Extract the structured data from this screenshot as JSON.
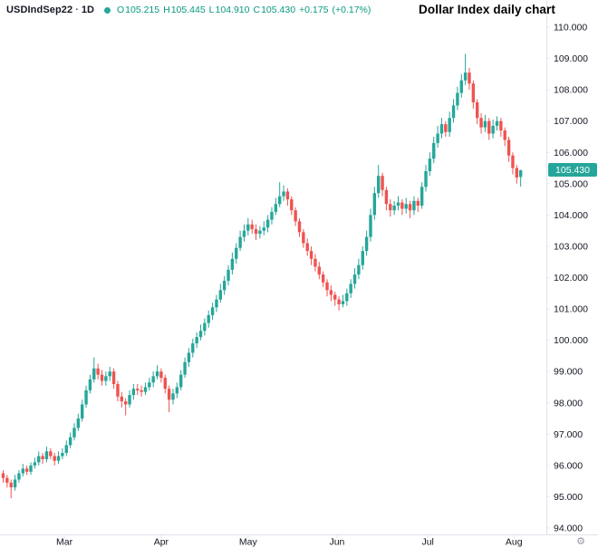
{
  "header": {
    "symbol": "USDIndSep22",
    "separator": "·",
    "interval": "1D",
    "ohlc": {
      "o_label": "O",
      "o": "105.215",
      "h_label": "H",
      "h": "105.445",
      "l_label": "L",
      "l": "104.910",
      "c_label": "C",
      "c": "105.430",
      "change": "+0.175",
      "change_pct": "(+0.17%)"
    }
  },
  "title": "Dollar Index daily chart",
  "colors": {
    "up": "#26a69a",
    "down": "#ef5350",
    "ohlc_text": "#089981",
    "axis_line": "#e0e3eb",
    "axis_text": "#131722",
    "label_bg": "#26a69a",
    "label_text": "#ffffff"
  },
  "footer": {
    "gear_icon": "⚙"
  },
  "chart_data": {
    "type": "candlestick",
    "title": "Dollar Index daily chart",
    "symbol": "USDIndSep22",
    "interval": "1D",
    "legend_position": "top-left",
    "grid": false,
    "y_axis": {
      "min": 94,
      "max": 110,
      "step": 1,
      "decimals": 3,
      "side": "right"
    },
    "x_axis": {
      "months": [
        {
          "label": "Mar",
          "i": 15.5
        },
        {
          "label": "Apr",
          "i": 40
        },
        {
          "label": "May",
          "i": 62
        },
        {
          "label": "Jun",
          "i": 84.5
        },
        {
          "label": "Jul",
          "i": 107.5
        },
        {
          "label": "Aug",
          "i": 129.3
        }
      ]
    },
    "last_price": 105.43,
    "last_price_label": "105.430",
    "candles": [
      [
        95.75,
        95.85,
        95.45,
        95.6
      ],
      [
        95.6,
        95.7,
        95.3,
        95.45
      ],
      [
        95.45,
        95.55,
        94.95,
        95.3
      ],
      [
        95.3,
        95.7,
        95.2,
        95.55
      ],
      [
        95.55,
        95.85,
        95.45,
        95.75
      ],
      [
        95.75,
        96.05,
        95.65,
        95.9
      ],
      [
        95.9,
        96.0,
        95.7,
        95.8
      ],
      [
        95.8,
        96.1,
        95.7,
        96.0
      ],
      [
        96.0,
        96.25,
        95.9,
        96.1
      ],
      [
        96.1,
        96.45,
        96.0,
        96.3
      ],
      [
        96.3,
        96.4,
        96.05,
        96.2
      ],
      [
        96.2,
        96.6,
        96.1,
        96.45
      ],
      [
        96.45,
        96.55,
        96.2,
        96.3
      ],
      [
        96.3,
        96.4,
        96.0,
        96.15
      ],
      [
        96.15,
        96.45,
        96.05,
        96.3
      ],
      [
        96.3,
        96.55,
        96.2,
        96.4
      ],
      [
        96.4,
        96.8,
        96.3,
        96.65
      ],
      [
        96.65,
        97.05,
        96.55,
        96.9
      ],
      [
        96.9,
        97.35,
        96.8,
        97.2
      ],
      [
        97.2,
        97.65,
        97.1,
        97.5
      ],
      [
        97.5,
        98.1,
        97.4,
        97.95
      ],
      [
        97.95,
        98.55,
        97.85,
        98.4
      ],
      [
        98.4,
        98.9,
        98.3,
        98.75
      ],
      [
        98.75,
        99.45,
        98.65,
        99.1
      ],
      [
        99.1,
        99.25,
        98.75,
        98.9
      ],
      [
        98.9,
        99.05,
        98.55,
        98.7
      ],
      [
        98.7,
        99.0,
        98.55,
        98.85
      ],
      [
        98.85,
        99.15,
        98.7,
        99.0
      ],
      [
        99.0,
        99.1,
        98.45,
        98.6
      ],
      [
        98.6,
        98.7,
        98.05,
        98.2
      ],
      [
        98.2,
        98.35,
        97.85,
        98.05
      ],
      [
        98.05,
        98.15,
        97.6,
        97.95
      ],
      [
        97.95,
        98.4,
        97.85,
        98.25
      ],
      [
        98.25,
        98.6,
        98.1,
        98.45
      ],
      [
        98.45,
        98.6,
        98.25,
        98.4
      ],
      [
        98.4,
        98.55,
        98.2,
        98.35
      ],
      [
        98.35,
        98.65,
        98.25,
        98.5
      ],
      [
        98.5,
        98.8,
        98.4,
        98.65
      ],
      [
        98.65,
        99.0,
        98.5,
        98.85
      ],
      [
        98.85,
        99.2,
        98.75,
        99.0
      ],
      [
        99.0,
        99.1,
        98.65,
        98.8
      ],
      [
        98.8,
        98.9,
        98.3,
        98.45
      ],
      [
        98.45,
        98.55,
        97.7,
        98.1
      ],
      [
        98.1,
        98.45,
        97.95,
        98.3
      ],
      [
        98.3,
        98.65,
        98.15,
        98.5
      ],
      [
        98.5,
        99.05,
        98.4,
        98.9
      ],
      [
        98.9,
        99.45,
        98.8,
        99.3
      ],
      [
        99.3,
        99.75,
        99.15,
        99.6
      ],
      [
        99.6,
        100.05,
        99.45,
        99.9
      ],
      [
        99.9,
        100.25,
        99.75,
        100.1
      ],
      [
        100.1,
        100.5,
        100.0,
        100.3
      ],
      [
        100.3,
        100.7,
        100.15,
        100.55
      ],
      [
        100.55,
        100.95,
        100.4,
        100.8
      ],
      [
        100.8,
        101.2,
        100.65,
        101.05
      ],
      [
        101.05,
        101.45,
        100.9,
        101.3
      ],
      [
        101.3,
        101.8,
        101.2,
        101.6
      ],
      [
        101.6,
        102.05,
        101.45,
        101.9
      ],
      [
        101.9,
        102.4,
        101.75,
        102.25
      ],
      [
        102.25,
        102.8,
        102.1,
        102.6
      ],
      [
        102.6,
        103.1,
        102.45,
        102.95
      ],
      [
        102.95,
        103.5,
        102.85,
        103.3
      ],
      [
        103.3,
        103.7,
        103.15,
        103.5
      ],
      [
        103.5,
        103.9,
        103.35,
        103.7
      ],
      [
        103.7,
        103.85,
        103.4,
        103.55
      ],
      [
        103.55,
        103.7,
        103.2,
        103.4
      ],
      [
        103.4,
        103.65,
        103.25,
        103.5
      ],
      [
        103.5,
        103.8,
        103.35,
        103.6
      ],
      [
        103.6,
        104.0,
        103.45,
        103.85
      ],
      [
        103.85,
        104.25,
        103.7,
        104.1
      ],
      [
        104.1,
        104.55,
        104.0,
        104.35
      ],
      [
        104.35,
        105.05,
        104.25,
        104.6
      ],
      [
        104.6,
        104.95,
        104.45,
        104.75
      ],
      [
        104.75,
        104.85,
        104.3,
        104.5
      ],
      [
        104.5,
        104.6,
        104.0,
        104.15
      ],
      [
        104.15,
        104.25,
        103.65,
        103.8
      ],
      [
        103.8,
        103.9,
        103.3,
        103.45
      ],
      [
        103.45,
        103.55,
        102.95,
        103.1
      ],
      [
        103.1,
        103.25,
        102.7,
        102.85
      ],
      [
        102.85,
        103.0,
        102.4,
        102.6
      ],
      [
        102.6,
        102.75,
        102.2,
        102.35
      ],
      [
        102.35,
        102.5,
        101.95,
        102.1
      ],
      [
        102.1,
        102.2,
        101.7,
        101.85
      ],
      [
        101.85,
        101.95,
        101.4,
        101.6
      ],
      [
        101.6,
        101.75,
        101.25,
        101.45
      ],
      [
        101.45,
        101.55,
        101.1,
        101.3
      ],
      [
        101.3,
        101.4,
        100.95,
        101.15
      ],
      [
        101.15,
        101.45,
        101.05,
        101.25
      ],
      [
        101.25,
        101.65,
        101.1,
        101.5
      ],
      [
        101.5,
        101.95,
        101.35,
        101.8
      ],
      [
        101.8,
        102.3,
        101.65,
        102.1
      ],
      [
        102.1,
        102.6,
        101.95,
        102.4
      ],
      [
        102.4,
        103.0,
        102.25,
        102.85
      ],
      [
        102.85,
        103.5,
        102.7,
        103.3
      ],
      [
        103.3,
        104.2,
        103.15,
        104.0
      ],
      [
        104.0,
        104.9,
        103.85,
        104.7
      ],
      [
        104.7,
        105.6,
        104.55,
        105.25
      ],
      [
        105.25,
        105.35,
        104.6,
        104.8
      ],
      [
        104.8,
        104.9,
        104.15,
        104.35
      ],
      [
        104.35,
        104.5,
        103.95,
        104.15
      ],
      [
        104.15,
        104.45,
        104.0,
        104.3
      ],
      [
        104.3,
        104.6,
        104.15,
        104.4
      ],
      [
        104.4,
        104.5,
        104.0,
        104.2
      ],
      [
        104.2,
        104.55,
        104.05,
        104.35
      ],
      [
        104.35,
        104.45,
        103.9,
        104.15
      ],
      [
        104.15,
        104.6,
        104.0,
        104.45
      ],
      [
        104.45,
        104.55,
        104.1,
        104.3
      ],
      [
        104.3,
        105.05,
        104.2,
        104.9
      ],
      [
        104.9,
        105.6,
        104.75,
        105.4
      ],
      [
        105.4,
        106.0,
        105.25,
        105.8
      ],
      [
        105.8,
        106.5,
        105.65,
        106.3
      ],
      [
        106.3,
        106.85,
        106.15,
        106.6
      ],
      [
        106.6,
        107.1,
        106.45,
        106.9
      ],
      [
        106.9,
        107.0,
        106.5,
        106.65
      ],
      [
        106.65,
        107.3,
        106.5,
        107.1
      ],
      [
        107.1,
        107.7,
        106.95,
        107.5
      ],
      [
        107.5,
        108.1,
        107.35,
        107.9
      ],
      [
        107.9,
        108.5,
        107.75,
        108.3
      ],
      [
        108.3,
        109.15,
        108.15,
        108.55
      ],
      [
        108.55,
        108.7,
        108.0,
        108.2
      ],
      [
        108.2,
        108.3,
        107.4,
        107.6
      ],
      [
        107.6,
        107.7,
        106.9,
        107.1
      ],
      [
        107.1,
        107.25,
        106.6,
        106.8
      ],
      [
        106.8,
        107.2,
        106.65,
        107.0
      ],
      [
        107.0,
        107.1,
        106.4,
        106.6
      ],
      [
        106.6,
        107.05,
        106.45,
        106.85
      ],
      [
        106.85,
        107.15,
        106.7,
        107.0
      ],
      [
        107.0,
        107.1,
        106.5,
        106.7
      ],
      [
        106.7,
        106.8,
        106.2,
        106.4
      ],
      [
        106.4,
        106.5,
        105.7,
        105.9
      ],
      [
        105.9,
        106.0,
        105.3,
        105.5
      ],
      [
        105.5,
        105.6,
        105.0,
        105.2
      ],
      [
        105.215,
        105.445,
        104.91,
        105.43
      ]
    ]
  }
}
